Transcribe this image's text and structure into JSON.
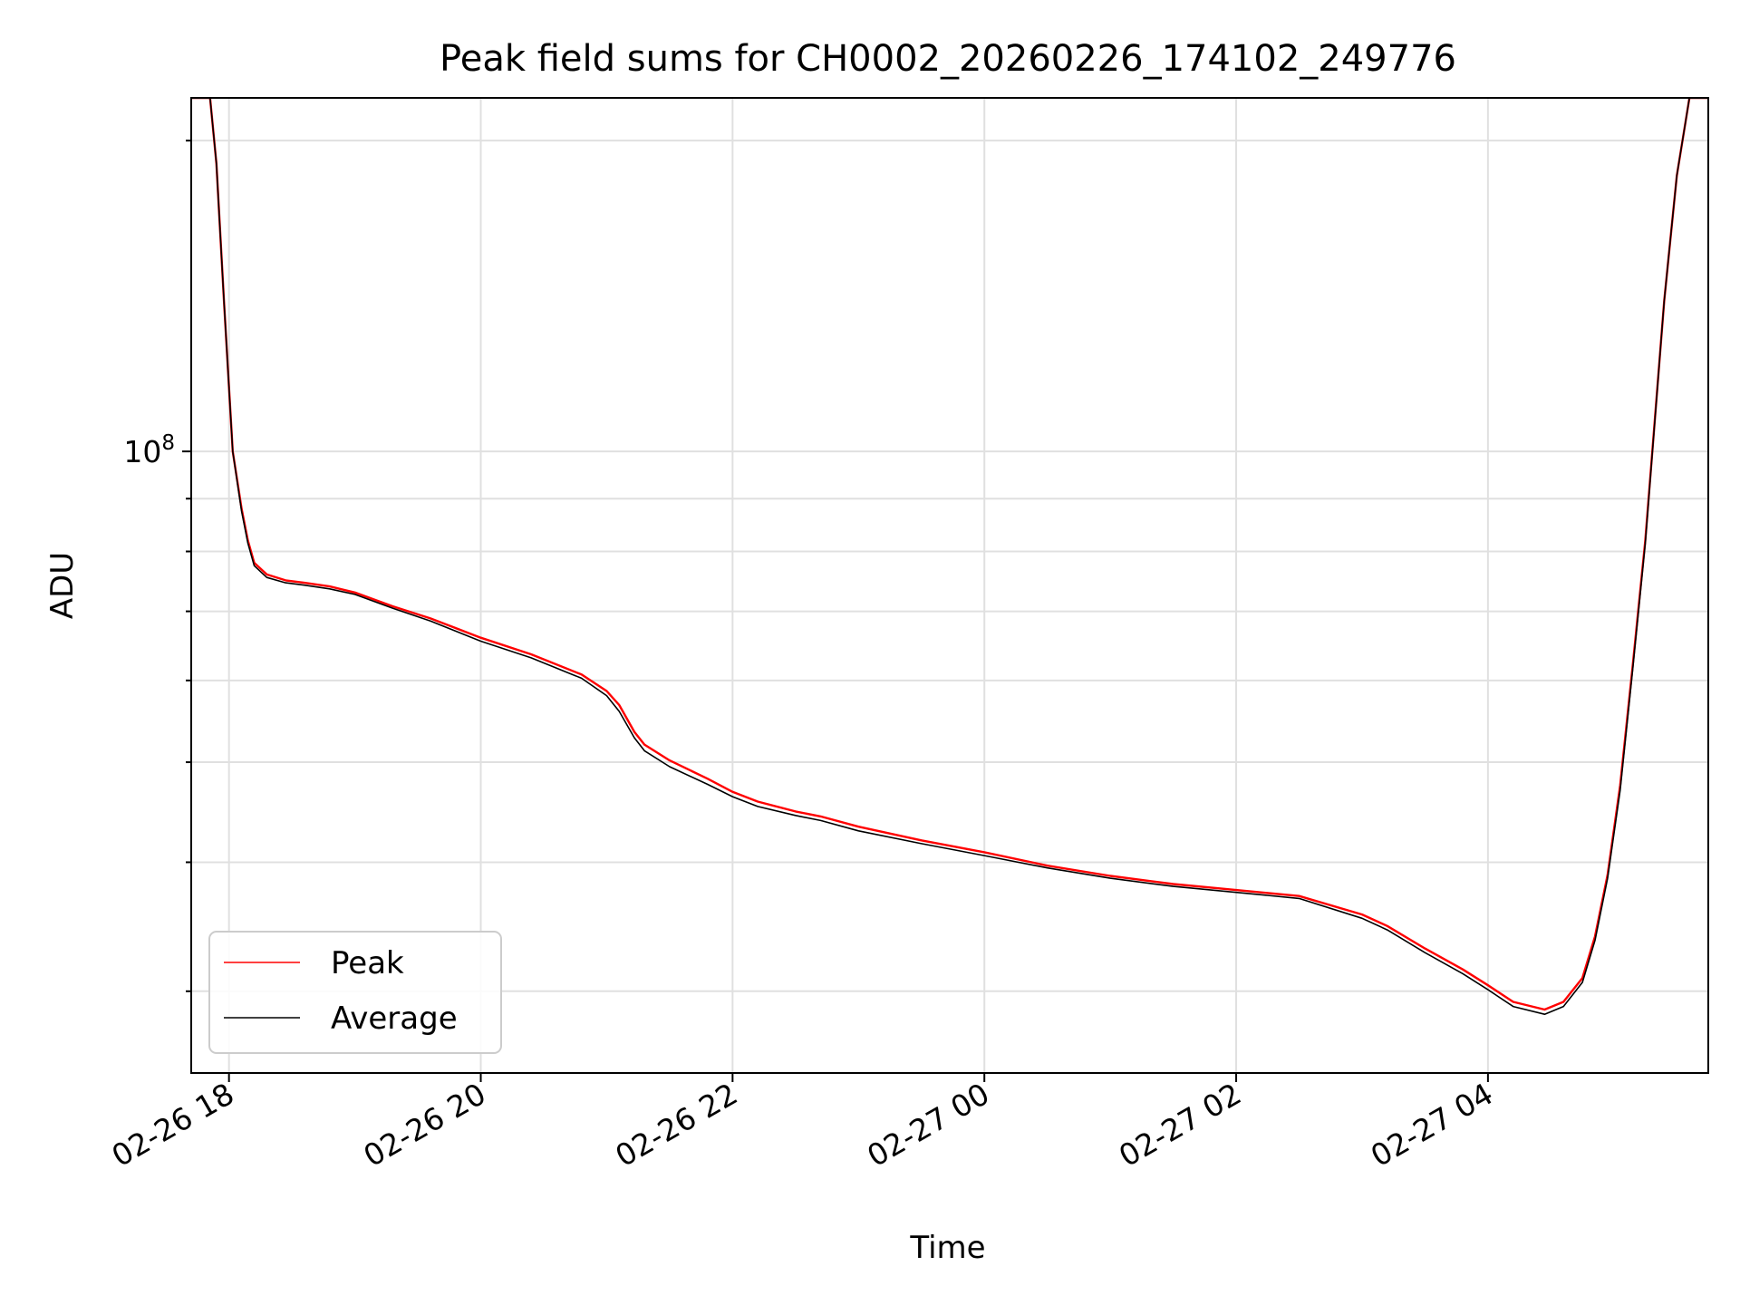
{
  "chart_data": {
    "type": "line",
    "title": "Peak field sums for CH0002_20260226_174102_249776",
    "xlabel": "Time",
    "ylabel": "ADU",
    "yscale": "log",
    "xlim_hours": [
      17.7,
      29.75
    ],
    "ylim": [
      25000000,
      220000000
    ],
    "x_ticks": [
      {
        "label": "02-26 18",
        "hours": 18
      },
      {
        "label": "02-26 20",
        "hours": 20
      },
      {
        "label": "02-26 22",
        "hours": 22
      },
      {
        "label": "02-27 00",
        "hours": 24
      },
      {
        "label": "02-27 02",
        "hours": 26
      },
      {
        "label": "02-27 04",
        "hours": 28
      }
    ],
    "y_major_tick": {
      "value": 100000000,
      "base": "10",
      "exponent": "8"
    },
    "y_minor_ticks": [
      30000000,
      40000000,
      50000000,
      60000000,
      70000000,
      80000000,
      90000000,
      200000000
    ],
    "grid": true,
    "legend": {
      "position": "lower-left"
    },
    "series": [
      {
        "name": "Peak",
        "color": "#ff0000",
        "x_hours": [
          17.7,
          17.85,
          17.9,
          17.96,
          18.03,
          18.1,
          18.15,
          18.2,
          18.3,
          18.45,
          18.6,
          18.8,
          19.0,
          19.3,
          19.6,
          20.0,
          20.4,
          20.8,
          21.0,
          21.1,
          21.22,
          21.3,
          21.5,
          21.8,
          22.0,
          22.2,
          22.5,
          22.7,
          23.0,
          23.5,
          24.0,
          24.5,
          25.0,
          25.5,
          26.0,
          26.5,
          27.0,
          27.2,
          27.5,
          27.8,
          28.0,
          28.2,
          28.45,
          28.6,
          28.75,
          28.85,
          28.95,
          29.05,
          29.15,
          29.25,
          29.4,
          29.5,
          29.6,
          29.75
        ],
        "values": [
          220000000,
          220000000,
          190000000,
          140000000,
          100000000,
          88000000,
          82000000,
          78000000,
          76000000,
          75000000,
          74600000,
          74000000,
          73000000,
          70800000,
          68900000,
          66000000,
          63600000,
          60800000,
          58600000,
          56800000,
          53500000,
          52000000,
          50200000,
          48200000,
          46800000,
          45800000,
          44800000,
          44300000,
          43300000,
          42000000,
          40900000,
          39700000,
          38800000,
          38100000,
          37600000,
          37100000,
          35600000,
          34700000,
          33000000,
          31500000,
          30400000,
          29300000,
          28800000,
          29300000,
          30900000,
          33900000,
          38900000,
          47500000,
          62000000,
          82000000,
          140000000,
          185000000,
          220000000,
          220000000
        ]
      },
      {
        "name": "Average",
        "color": "#000000",
        "x_hours": [
          17.7,
          17.85,
          17.9,
          17.96,
          18.03,
          18.1,
          18.15,
          18.2,
          18.3,
          18.45,
          18.6,
          18.8,
          19.0,
          19.3,
          19.6,
          20.0,
          20.4,
          20.8,
          21.0,
          21.1,
          21.22,
          21.3,
          21.5,
          21.8,
          22.0,
          22.2,
          22.5,
          22.7,
          23.0,
          23.5,
          24.0,
          24.5,
          25.0,
          25.5,
          26.0,
          26.5,
          27.0,
          27.2,
          27.5,
          27.8,
          28.0,
          28.2,
          28.45,
          28.6,
          28.75,
          28.85,
          28.95,
          29.05,
          29.15,
          29.25,
          29.4,
          29.5,
          29.6,
          29.75
        ],
        "values": [
          220000000,
          220000000,
          190000000,
          140000000,
          100000000,
          87500000,
          81500000,
          77500000,
          75500000,
          74600000,
          74200000,
          73600000,
          72700000,
          70500000,
          68500000,
          65500000,
          63100000,
          60300000,
          58000000,
          56000000,
          52800000,
          51300000,
          49500000,
          47600000,
          46300000,
          45300000,
          44400000,
          43900000,
          42900000,
          41700000,
          40600000,
          39500000,
          38600000,
          37900000,
          37400000,
          36900000,
          35300000,
          34400000,
          32700000,
          31200000,
          30100000,
          29000000,
          28500000,
          29000000,
          30600000,
          33600000,
          38600000,
          47000000,
          61500000,
          81500000,
          140000000,
          185000000,
          220000000,
          220000000
        ]
      }
    ]
  }
}
